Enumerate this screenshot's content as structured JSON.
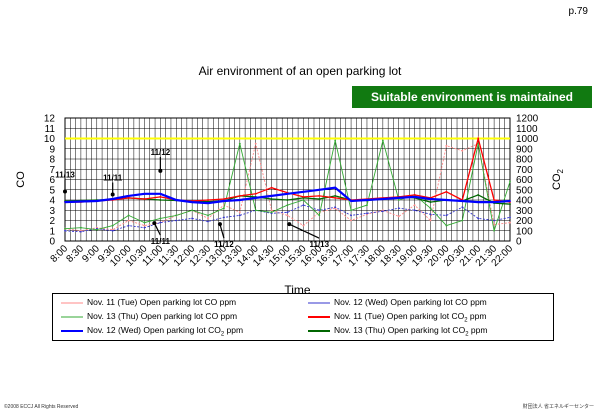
{
  "page_number": "p.79",
  "badge_text": "Suitable environment is maintained",
  "footer_left": "©2008 ECCJ All Rights Reserved",
  "footer_right": "財団法人 省エネルギーセンター",
  "legend_items": [
    {
      "label": "Nov. 11 (Tue) Open parking lot CO ppm",
      "color": "#ff8888"
    },
    {
      "label": "Nov. 12 (Wed) Open parking lot CO ppm",
      "color": "#3333cc"
    },
    {
      "label": "Nov. 13 (Thu) Open parking lot CO ppm",
      "color": "#33aa33"
    },
    {
      "label": "Nov. 11 (Tue) Open parking lot CO",
      "sub": "2",
      "label_after": " ppm",
      "color": "#ff0000"
    },
    {
      "label": "Nov. 12 (Wed) Open parking lot CO",
      "sub": "2",
      "label_after": " ppm",
      "color": "#0000ff"
    },
    {
      "label": "Nov. 13 (Thu) Open parking lot CO",
      "sub": "2",
      "label_after": " ppm",
      "color": "#006600"
    }
  ],
  "chart_data": {
    "type": "line",
    "title": "Air environment of an open parking lot",
    "xlabel": "Time",
    "ylabel_left": "CO",
    "ylabel_right": "CO",
    "ylabel_right_sub": "2",
    "ylim_left": [
      0,
      12
    ],
    "ylim_right": [
      0,
      1200
    ],
    "yticks_left": [
      "0",
      "1",
      "2",
      "3",
      "4",
      "5",
      "6",
      "7",
      "8",
      "9",
      "10",
      "11",
      "12"
    ],
    "yticks_right": [
      "0",
      "100",
      "200",
      "300",
      "400",
      "500",
      "600",
      "700",
      "800",
      "900",
      "1000",
      "1100",
      "1200"
    ],
    "x_ticks": [
      "8:00",
      "8:30",
      "9:00",
      "9:30",
      "10:00",
      "10:30",
      "11:00",
      "11:30",
      "12:00",
      "12:30",
      "13:00",
      "13:30",
      "14:00",
      "14:30",
      "15:00",
      "15:30",
      "16:00",
      "16:30",
      "17:00",
      "17:30",
      "18:00",
      "18:30",
      "19:00",
      "19:30",
      "20:00",
      "20:30",
      "21:00",
      "21:30",
      "22:00"
    ],
    "grid": true,
    "reference_line": {
      "value": 10,
      "axis": "left",
      "color": "#ffff00"
    },
    "annotations": [
      {
        "text": "11/11",
        "x": "9:30",
        "y": 5.9
      },
      {
        "text": "11/12",
        "x": "11:00",
        "y": 8.4
      },
      {
        "text": "11/13",
        "x": "13:50",
        "y": 6.2
      },
      {
        "text": "11/11",
        "x": "11:00",
        "y": -0.3
      },
      {
        "text": "11/12",
        "x": "13:00",
        "y": -0.6
      },
      {
        "text": "11/13",
        "x": "16:00",
        "y": -0.6
      }
    ],
    "series": [
      {
        "name": "Nov. 11 (Tue) Open parking lot CO ppm",
        "axis": "left",
        "color": "#ff8888",
        "dashed": true,
        "values": [
          1.2,
          1.0,
          1.3,
          1.1,
          2.0,
          1.5,
          1.8,
          2.5,
          3.0,
          2.2,
          3.5,
          2.8,
          9.5,
          3.0,
          2.5,
          1.5,
          2.8,
          3.2,
          2.0,
          2.6,
          3.0,
          2.4,
          3.5,
          2.0,
          9.3,
          8.8,
          9.5,
          1.6,
          1.8
        ]
      },
      {
        "name": "Nov. 12 (Wed) Open parking lot CO ppm",
        "axis": "left",
        "color": "#3333cc",
        "dashed": true,
        "values": [
          1.0,
          0.9,
          1.2,
          1.0,
          1.5,
          1.3,
          1.8,
          2.0,
          2.2,
          1.9,
          2.3,
          2.5,
          3.0,
          2.7,
          2.8,
          3.5,
          3.0,
          3.3,
          2.5,
          2.7,
          2.9,
          3.2,
          3.0,
          2.6,
          2.5,
          3.3,
          2.2,
          2.0,
          2.3
        ]
      },
      {
        "name": "Nov. 13 (Thu) Open parking lot CO ppm",
        "axis": "left",
        "color": "#33aa33",
        "dashed": false,
        "values": [
          1.2,
          1.3,
          1.1,
          1.5,
          2.5,
          1.8,
          2.2,
          2.5,
          3.0,
          2.5,
          3.2,
          9.5,
          3.0,
          2.8,
          3.5,
          4.0,
          2.5,
          9.8,
          3.0,
          3.5,
          9.8,
          4.0,
          4.5,
          3.2,
          1.5,
          2.0,
          9.5,
          1.0,
          5.8
        ]
      },
      {
        "name": "Nov. 11 (Tue) Open parking lot CO2 ppm",
        "axis": "right",
        "color": "#ff0000",
        "dashed": false,
        "values": [
          380,
          380,
          390,
          400,
          420,
          410,
          430,
          400,
          390,
          400,
          410,
          440,
          460,
          520,
          470,
          430,
          440,
          420,
          400,
          410,
          420,
          430,
          450,
          420,
          480,
          400,
          1000,
          400,
          380
        ]
      },
      {
        "name": "Nov. 12 (Wed) Open parking lot CO2 ppm",
        "axis": "right",
        "color": "#0000ff",
        "dashed": false,
        "values": [
          380,
          385,
          390,
          410,
          440,
          460,
          460,
          400,
          380,
          370,
          390,
          400,
          420,
          440,
          460,
          480,
          500,
          520,
          390,
          400,
          410,
          420,
          430,
          410,
          400,
          390,
          380,
          380,
          390
        ]
      },
      {
        "name": "Nov. 13 (Thu) Open parking lot CO2 ppm",
        "axis": "right",
        "color": "#006600",
        "dashed": false,
        "values": [
          390,
          395,
          400,
          405,
          420,
          410,
          400,
          395,
          390,
          385,
          390,
          440,
          430,
          410,
          400,
          420,
          410,
          440,
          400,
          395,
          410,
          430,
          420,
          380,
          400,
          390,
          450,
          370,
          360
        ]
      }
    ]
  }
}
